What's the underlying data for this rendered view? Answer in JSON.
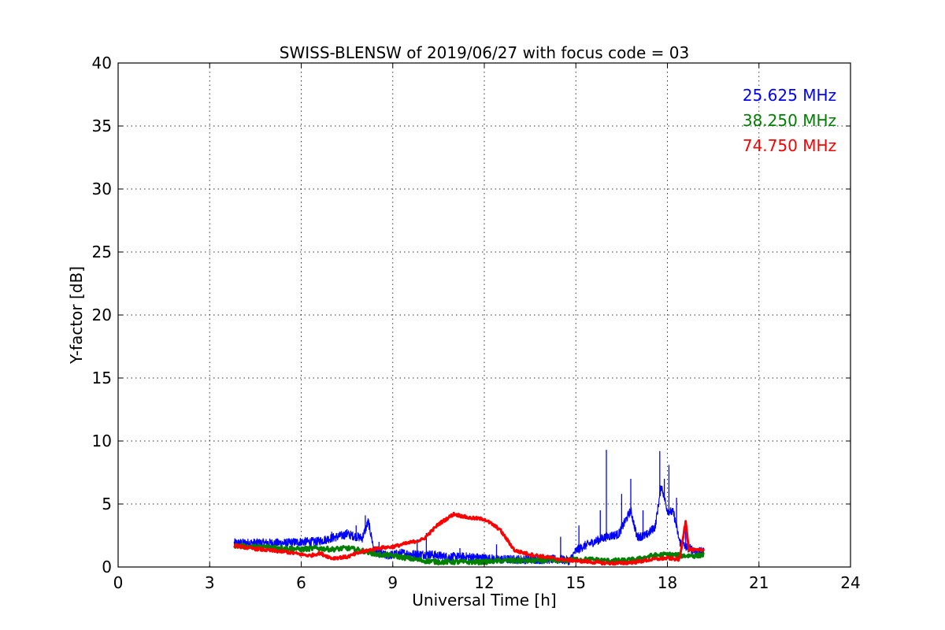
{
  "chart_data": {
    "type": "line",
    "title": "SWISS-BLENSW of 2019/06/27 with focus code = 03",
    "xlabel": "Universal Time [h]",
    "ylabel": "Y-factor [dB]",
    "xlim": [
      0,
      24
    ],
    "ylim": [
      0,
      40
    ],
    "x_ticks": [
      "0",
      "3",
      "6",
      "9",
      "12",
      "15",
      "18",
      "21",
      "24"
    ],
    "y_ticks": [
      "0",
      "5",
      "10",
      "15",
      "20",
      "25",
      "30",
      "35",
      "40"
    ],
    "grid": true,
    "legend_position": "top-right",
    "series": [
      {
        "name": "25.625 MHz",
        "color": "#0000ff",
        "points": [
          [
            3.8,
            1.9
          ],
          [
            4.5,
            1.9
          ],
          [
            5.0,
            1.9
          ],
          [
            5.5,
            1.9
          ],
          [
            6.0,
            2.0
          ],
          [
            6.5,
            2.0
          ],
          [
            7.0,
            2.3
          ],
          [
            7.5,
            2.6
          ],
          [
            8.0,
            2.3
          ],
          [
            8.2,
            3.6
          ],
          [
            8.4,
            1.2
          ],
          [
            8.8,
            0.9
          ],
          [
            9.3,
            1.1
          ],
          [
            9.7,
            1.0
          ],
          [
            10.2,
            1.0
          ],
          [
            10.8,
            0.8
          ],
          [
            11.5,
            0.8
          ],
          [
            12.0,
            0.7
          ],
          [
            12.5,
            0.6
          ],
          [
            13.0,
            0.6
          ],
          [
            13.5,
            0.6
          ],
          [
            14.0,
            0.6
          ],
          [
            14.5,
            0.6
          ],
          [
            14.8,
            0.5
          ],
          [
            15.0,
            1.3
          ],
          [
            15.3,
            1.7
          ],
          [
            15.6,
            2.0
          ],
          [
            16.0,
            2.4
          ],
          [
            16.4,
            2.6
          ],
          [
            16.8,
            4.5
          ],
          [
            17.0,
            2.4
          ],
          [
            17.3,
            2.5
          ],
          [
            17.6,
            3.2
          ],
          [
            17.8,
            6.5
          ],
          [
            18.0,
            4.5
          ],
          [
            18.2,
            4.3
          ],
          [
            18.4,
            2.0
          ],
          [
            18.6,
            1.6
          ],
          [
            18.8,
            1.4
          ],
          [
            19.0,
            1.2
          ],
          [
            19.2,
            1.2
          ]
        ],
        "spikes": [
          [
            7.0,
            2.8
          ],
          [
            7.5,
            3.0
          ],
          [
            7.8,
            3.3
          ],
          [
            8.1,
            4.1
          ],
          [
            8.55,
            2.0
          ],
          [
            9.8,
            2.2
          ],
          [
            10.1,
            2.7
          ],
          [
            11.2,
            1.5
          ],
          [
            12.4,
            1.8
          ],
          [
            14.5,
            2.4
          ],
          [
            15.1,
            3.3
          ],
          [
            15.8,
            4.5
          ],
          [
            16.0,
            9.3
          ],
          [
            16.5,
            5.8
          ],
          [
            16.8,
            7.0
          ],
          [
            17.2,
            4.5
          ],
          [
            17.75,
            9.2
          ],
          [
            17.9,
            7.0
          ],
          [
            18.05,
            8.1
          ],
          [
            18.3,
            5.5
          ],
          [
            18.6,
            3.2
          ]
        ]
      },
      {
        "name": "38.250 MHz",
        "color": "#008000",
        "points": [
          [
            3.8,
            1.7
          ],
          [
            4.5,
            1.6
          ],
          [
            5.0,
            1.6
          ],
          [
            5.5,
            1.5
          ],
          [
            6.0,
            1.4
          ],
          [
            6.5,
            1.5
          ],
          [
            7.0,
            1.4
          ],
          [
            7.5,
            1.5
          ],
          [
            8.0,
            1.3
          ],
          [
            8.5,
            1.0
          ],
          [
            9.0,
            0.9
          ],
          [
            9.5,
            0.7
          ],
          [
            10.0,
            0.5
          ],
          [
            10.5,
            0.4
          ],
          [
            11.0,
            0.4
          ],
          [
            11.5,
            0.4
          ],
          [
            12.0,
            0.4
          ],
          [
            12.5,
            0.5
          ],
          [
            13.0,
            0.5
          ],
          [
            13.5,
            0.5
          ],
          [
            14.0,
            0.5
          ],
          [
            14.5,
            0.5
          ],
          [
            15.0,
            0.6
          ],
          [
            15.5,
            0.6
          ],
          [
            16.0,
            0.5
          ],
          [
            16.5,
            0.5
          ],
          [
            17.0,
            0.6
          ],
          [
            17.5,
            0.9
          ],
          [
            18.0,
            1.0
          ],
          [
            18.5,
            0.9
          ],
          [
            19.0,
            0.9
          ],
          [
            19.2,
            1.0
          ]
        ]
      },
      {
        "name": "74.750 MHz",
        "color": "#ff0000",
        "points": [
          [
            3.8,
            1.7
          ],
          [
            4.3,
            1.5
          ],
          [
            5.0,
            1.3
          ],
          [
            5.5,
            1.2
          ],
          [
            6.0,
            1.0
          ],
          [
            6.3,
            0.9
          ],
          [
            6.6,
            1.1
          ],
          [
            7.0,
            0.7
          ],
          [
            7.5,
            0.8
          ],
          [
            8.0,
            1.2
          ],
          [
            8.5,
            1.5
          ],
          [
            9.0,
            1.6
          ],
          [
            9.5,
            1.9
          ],
          [
            10.0,
            2.2
          ],
          [
            10.5,
            3.4
          ],
          [
            11.0,
            4.2
          ],
          [
            11.5,
            3.9
          ],
          [
            12.0,
            3.8
          ],
          [
            12.5,
            3.0
          ],
          [
            13.0,
            1.3
          ],
          [
            13.5,
            1.0
          ],
          [
            14.0,
            0.8
          ],
          [
            14.5,
            0.6
          ],
          [
            15.0,
            0.5
          ],
          [
            15.5,
            0.4
          ],
          [
            16.0,
            0.3
          ],
          [
            16.5,
            0.3
          ],
          [
            17.0,
            0.4
          ],
          [
            17.5,
            0.6
          ],
          [
            18.0,
            0.7
          ],
          [
            18.4,
            0.6
          ],
          [
            18.6,
            3.7
          ],
          [
            18.7,
            1.4
          ],
          [
            19.0,
            1.3
          ],
          [
            19.2,
            1.4
          ]
        ]
      }
    ]
  }
}
